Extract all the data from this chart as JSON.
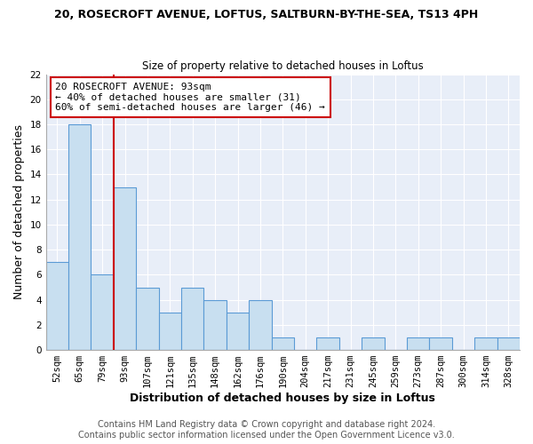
{
  "title": "20, ROSECROFT AVENUE, LOFTUS, SALTBURN-BY-THE-SEA, TS13 4PH",
  "subtitle": "Size of property relative to detached houses in Loftus",
  "xlabel": "Distribution of detached houses by size in Loftus",
  "ylabel": "Number of detached properties",
  "bin_labels": [
    "52sqm",
    "65sqm",
    "79sqm",
    "93sqm",
    "107sqm",
    "121sqm",
    "135sqm",
    "148sqm",
    "162sqm",
    "176sqm",
    "190sqm",
    "204sqm",
    "217sqm",
    "231sqm",
    "245sqm",
    "259sqm",
    "273sqm",
    "287sqm",
    "300sqm",
    "314sqm",
    "328sqm"
  ],
  "bar_heights": [
    7,
    18,
    6,
    13,
    5,
    3,
    5,
    4,
    3,
    4,
    1,
    0,
    1,
    0,
    1,
    0,
    1,
    1,
    0,
    1,
    1
  ],
  "bar_color": "#c8dff0",
  "bar_edge_color": "#5b9bd5",
  "vline_color": "#cc0000",
  "ylim": [
    0,
    22
  ],
  "yticks": [
    0,
    2,
    4,
    6,
    8,
    10,
    12,
    14,
    16,
    18,
    20,
    22
  ],
  "annotation_title": "20 ROSECROFT AVENUE: 93sqm",
  "annotation_line1": "← 40% of detached houses are smaller (31)",
  "annotation_line2": "60% of semi-detached houses are larger (46) →",
  "annotation_box_facecolor": "#ffffff",
  "annotation_box_edgecolor": "#cc0000",
  "footer1": "Contains HM Land Registry data © Crown copyright and database right 2024.",
  "footer2": "Contains public sector information licensed under the Open Government Licence v3.0.",
  "plot_bg_color": "#e8eef8",
  "fig_bg_color": "#ffffff",
  "grid_color": "#ffffff",
  "title_fontsize": 9,
  "subtitle_fontsize": 8.5,
  "axis_label_fontsize": 9,
  "tick_fontsize": 7.5,
  "annotation_fontsize": 8,
  "footer_fontsize": 7
}
